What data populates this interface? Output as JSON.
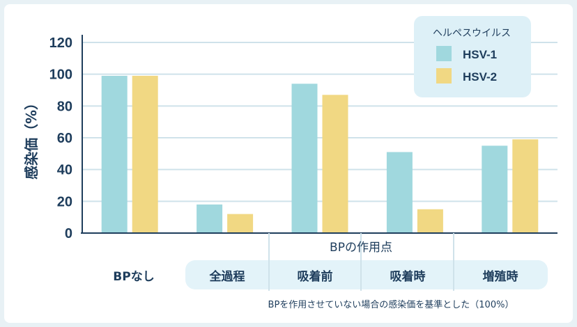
{
  "chart_data": {
    "type": "bar",
    "ylabel": "感染価（%）",
    "ylim": [
      0,
      120
    ],
    "yticks": [
      0,
      20,
      40,
      60,
      80,
      100,
      120
    ],
    "categories": [
      "BPなし",
      "全過程",
      "吸着前",
      "吸着時",
      "増殖時"
    ],
    "group_label": "BPの作用点",
    "legend_title": "ヘルペスウイルス",
    "legend_position": "top-right",
    "grid": "horizontal",
    "series": [
      {
        "name": "HSV-1",
        "color": "#a0d8de",
        "values": [
          99,
          18,
          94,
          51,
          55
        ]
      },
      {
        "name": "HSV-2",
        "color": "#f1d883",
        "values": [
          99,
          12,
          87,
          15,
          59
        ]
      }
    ],
    "footnote": "BPを作用させていない場合の感染価を基準とした（100%）"
  },
  "colors": {
    "axis": "#1e3d5c",
    "grid": "#cfe2ea",
    "legend_bg": "#ddf0f7",
    "label_band": "#e3f3f9",
    "divider": "#cfe2ea"
  }
}
